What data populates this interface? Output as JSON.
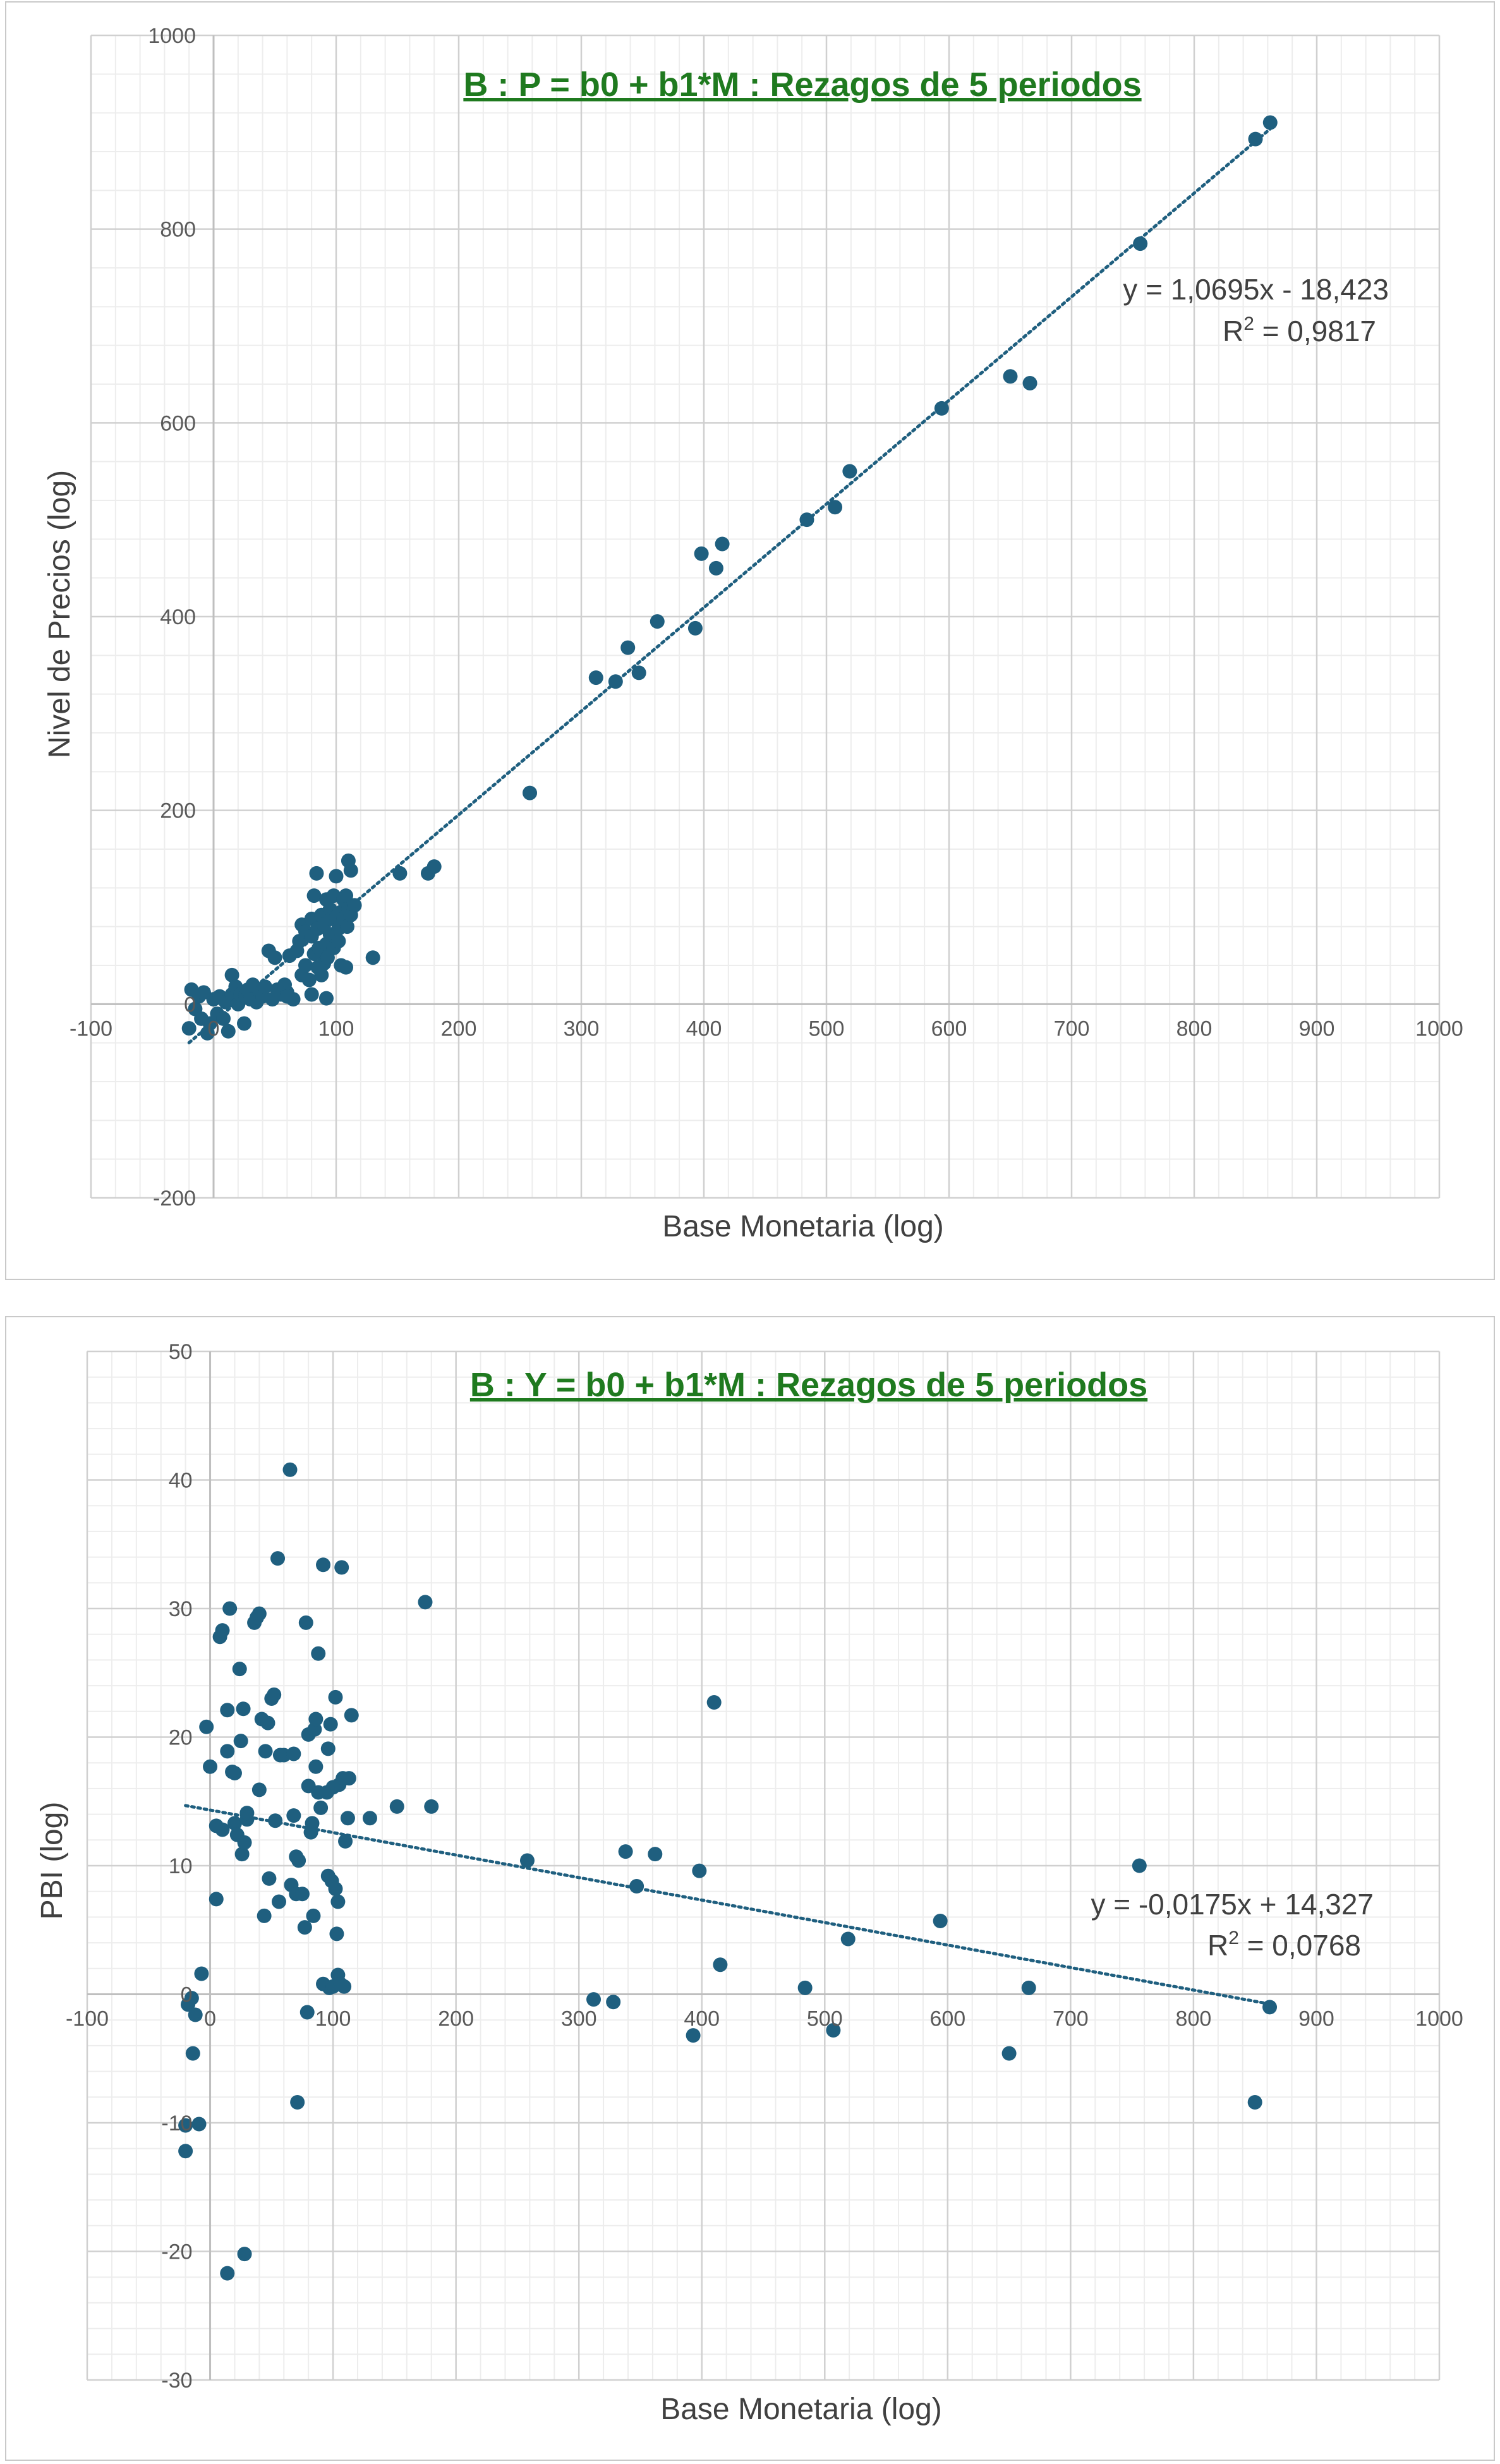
{
  "chart_data": [
    {
      "type": "scatter",
      "title": "B : P = b0 + b1*M : Rezagos de 5 periodos",
      "xlabel": "Base Monetaria (log)",
      "ylabel": "Nivel de Precios (log)",
      "xlim": [
        -100,
        1000
      ],
      "ylim": [
        -200,
        1000
      ],
      "x_ticks": [
        "-100",
        "0",
        "100",
        "200",
        "300",
        "400",
        "500",
        "600",
        "700",
        "800",
        "900",
        "1000"
      ],
      "y_ticks": [
        "-200",
        "0",
        "200",
        "400",
        "600",
        "800",
        "1000"
      ],
      "grid": true,
      "marker_color": "#1f5f7f",
      "trendline": {
        "type": "linear",
        "slope": 1.0695,
        "intercept": -18.423,
        "x_range": [
          -20,
          862
        ],
        "style": "dotted",
        "color": "#1f5f7f",
        "equation_label": "y = 1,0695x - 18,423",
        "r2_prefix": "R",
        "r2_sup": "2",
        "r2_value": " = 0,9817"
      },
      "points": [
        [
          -20,
          -25
        ],
        [
          -18,
          15
        ],
        [
          -15,
          -5
        ],
        [
          -12,
          8
        ],
        [
          -10,
          -15
        ],
        [
          -8,
          12
        ],
        [
          -5,
          -30
        ],
        [
          -3,
          -20
        ],
        [
          0,
          5
        ],
        [
          3,
          -10
        ],
        [
          5,
          8
        ],
        [
          8,
          -15
        ],
        [
          10,
          2
        ],
        [
          12,
          -28
        ],
        [
          15,
          30
        ],
        [
          15,
          10
        ],
        [
          18,
          18
        ],
        [
          20,
          0
        ],
        [
          22,
          10
        ],
        [
          25,
          -20
        ],
        [
          26,
          8
        ],
        [
          28,
          15
        ],
        [
          30,
          5
        ],
        [
          32,
          20
        ],
        [
          35,
          2
        ],
        [
          38,
          12
        ],
        [
          40,
          8
        ],
        [
          42,
          18
        ],
        [
          45,
          55
        ],
        [
          48,
          5
        ],
        [
          50,
          48
        ],
        [
          52,
          15
        ],
        [
          55,
          10
        ],
        [
          58,
          20
        ],
        [
          60,
          12
        ],
        [
          62,
          50
        ],
        [
          65,
          5
        ],
        [
          68,
          55
        ],
        [
          70,
          65
        ],
        [
          72,
          30
        ],
        [
          72,
          82
        ],
        [
          75,
          75
        ],
        [
          75,
          40
        ],
        [
          78,
          25
        ],
        [
          80,
          88
        ],
        [
          80,
          70
        ],
        [
          82,
          112
        ],
        [
          82,
          52
        ],
        [
          84,
          135
        ],
        [
          85,
          38
        ],
        [
          85,
          78
        ],
        [
          86,
          58
        ],
        [
          88,
          92
        ],
        [
          88,
          30
        ],
        [
          90,
          42
        ],
        [
          90,
          82
        ],
        [
          92,
          108
        ],
        [
          92,
          62
        ],
        [
          93,
          48
        ],
        [
          95,
          72
        ],
        [
          95,
          98
        ],
        [
          96,
          88
        ],
        [
          98,
          58
        ],
        [
          98,
          112
        ],
        [
          100,
          132
        ],
        [
          100,
          90
        ],
        [
          102,
          78
        ],
        [
          102,
          65
        ],
        [
          104,
          95
        ],
        [
          104,
          40
        ],
        [
          106,
          88
        ],
        [
          106,
          108
        ],
        [
          108,
          112
        ],
        [
          108,
          38
        ],
        [
          109,
          80
        ],
        [
          110,
          148
        ],
        [
          110,
          98
        ],
        [
          112,
          92
        ],
        [
          112,
          138
        ],
        [
          115,
          102
        ],
        [
          80,
          10
        ],
        [
          60,
          8
        ],
        [
          92,
          6
        ],
        [
          130,
          48
        ],
        [
          152,
          135
        ],
        [
          175,
          135
        ],
        [
          180,
          142
        ],
        [
          258,
          218
        ],
        [
          312,
          337
        ],
        [
          328,
          333
        ],
        [
          338,
          368
        ],
        [
          347,
          342
        ],
        [
          362,
          395
        ],
        [
          393,
          388
        ],
        [
          398,
          465
        ],
        [
          410,
          450
        ],
        [
          415,
          475
        ],
        [
          484,
          500
        ],
        [
          507,
          513
        ],
        [
          519,
          550
        ],
        [
          594,
          615
        ],
        [
          650,
          648
        ],
        [
          666,
          641
        ],
        [
          756,
          785
        ],
        [
          850,
          893
        ],
        [
          862,
          910
        ]
      ]
    },
    {
      "type": "scatter",
      "title": "B : Y = b0 + b1*M :  Rezagos de 5 periodos",
      "xlabel": "Base Monetaria (log)",
      "ylabel": "PBI (log)",
      "xlim": [
        -100,
        1000
      ],
      "ylim": [
        -30,
        50
      ],
      "x_ticks": [
        "-100",
        "0",
        "100",
        "200",
        "300",
        "400",
        "500",
        "600",
        "700",
        "800",
        "900",
        "1000"
      ],
      "y_ticks": [
        "-30",
        "-20",
        "-10",
        "0",
        "10",
        "20",
        "30",
        "40",
        "50"
      ],
      "grid": true,
      "marker_color": "#1f5f7f",
      "trendline": {
        "type": "linear",
        "slope": -0.0175,
        "intercept": 14.327,
        "x_range": [
          -20,
          862
        ],
        "style": "dotted",
        "color": "#1f5f7f",
        "equation_label": "y = -0,0175x + 14,327",
        "r2_prefix": "R",
        "r2_sup": "2",
        "r2_value": " = 0,0768"
      },
      "points": [
        [
          -20,
          -10.2
        ],
        [
          -20,
          -12.2
        ],
        [
          -18,
          -0.8
        ],
        [
          -15,
          -0.3
        ],
        [
          -14,
          -4.6
        ],
        [
          -12,
          -1.6
        ],
        [
          -9,
          -10.1
        ],
        [
          -7,
          1.6
        ],
        [
          -3,
          20.8
        ],
        [
          0,
          17.7
        ],
        [
          5,
          13.1
        ],
        [
          5,
          7.4
        ],
        [
          8,
          27.8
        ],
        [
          10,
          28.3
        ],
        [
          10,
          12.8
        ],
        [
          14,
          18.9
        ],
        [
          14,
          22.1
        ],
        [
          16,
          30.0
        ],
        [
          18,
          17.3
        ],
        [
          20,
          17.2
        ],
        [
          20,
          13.3
        ],
        [
          22,
          12.4
        ],
        [
          24,
          25.3
        ],
        [
          25,
          19.7
        ],
        [
          26,
          10.9
        ],
        [
          27,
          22.2
        ],
        [
          28,
          11.8
        ],
        [
          30,
          13.6
        ],
        [
          30,
          14.1
        ],
        [
          36,
          28.9
        ],
        [
          38,
          29.3
        ],
        [
          40,
          29.6
        ],
        [
          40,
          15.9
        ],
        [
          42,
          21.4
        ],
        [
          44,
          6.1
        ],
        [
          45,
          18.9
        ],
        [
          47,
          21.1
        ],
        [
          48,
          9.0
        ],
        [
          50,
          23.0
        ],
        [
          52,
          23.3
        ],
        [
          53,
          13.5
        ],
        [
          55,
          33.9
        ],
        [
          56,
          7.2
        ],
        [
          57,
          18.6
        ],
        [
          60,
          18.6
        ],
        [
          65,
          40.8
        ],
        [
          66,
          8.5
        ],
        [
          68,
          13.9
        ],
        [
          68,
          18.7
        ],
        [
          70,
          10.7
        ],
        [
          70,
          7.8
        ],
        [
          72,
          10.4
        ],
        [
          75,
          7.8
        ],
        [
          77,
          5.2
        ],
        [
          78,
          28.9
        ],
        [
          79,
          -1.4
        ],
        [
          80,
          20.2
        ],
        [
          80,
          16.2
        ],
        [
          82,
          12.6
        ],
        [
          83,
          13.3
        ],
        [
          84,
          6.1
        ],
        [
          85,
          20.6
        ],
        [
          86,
          21.4
        ],
        [
          86,
          17.7
        ],
        [
          88,
          26.5
        ],
        [
          88,
          15.7
        ],
        [
          90,
          14.5
        ],
        [
          92,
          33.4
        ],
        [
          92,
          0.8
        ],
        [
          95,
          15.7
        ],
        [
          96,
          19.1
        ],
        [
          96,
          9.2
        ],
        [
          97,
          0.5
        ],
        [
          98,
          21.0
        ],
        [
          99,
          8.8
        ],
        [
          100,
          0.6
        ],
        [
          100,
          16.1
        ],
        [
          102,
          23.1
        ],
        [
          102,
          8.2
        ],
        [
          103,
          4.7
        ],
        [
          104,
          1.5
        ],
        [
          104,
          7.2
        ],
        [
          105,
          16.3
        ],
        [
          106,
          0.8
        ],
        [
          107,
          33.2
        ],
        [
          108,
          16.8
        ],
        [
          109,
          0.6
        ],
        [
          110,
          11.9
        ],
        [
          112,
          13.7
        ],
        [
          113,
          16.8
        ],
        [
          115,
          21.7
        ],
        [
          71,
          -8.4
        ],
        [
          130,
          13.7
        ],
        [
          152,
          14.6
        ],
        [
          175,
          30.5
        ],
        [
          180,
          14.6
        ],
        [
          258,
          10.4
        ],
        [
          312,
          -0.4
        ],
        [
          328,
          -0.6
        ],
        [
          338,
          11.1
        ],
        [
          347,
          8.4
        ],
        [
          362,
          10.9
        ],
        [
          393,
          -3.2
        ],
        [
          398,
          9.6
        ],
        [
          410,
          22.7
        ],
        [
          415,
          2.3
        ],
        [
          484,
          0.5
        ],
        [
          507,
          -2.8
        ],
        [
          519,
          4.3
        ],
        [
          594,
          5.7
        ],
        [
          650,
          -4.6
        ],
        [
          666,
          0.5
        ],
        [
          756,
          10.0
        ],
        [
          850,
          -8.4
        ],
        [
          862,
          -1.0
        ],
        [
          28,
          -20.2
        ],
        [
          14,
          -21.7
        ]
      ]
    }
  ]
}
